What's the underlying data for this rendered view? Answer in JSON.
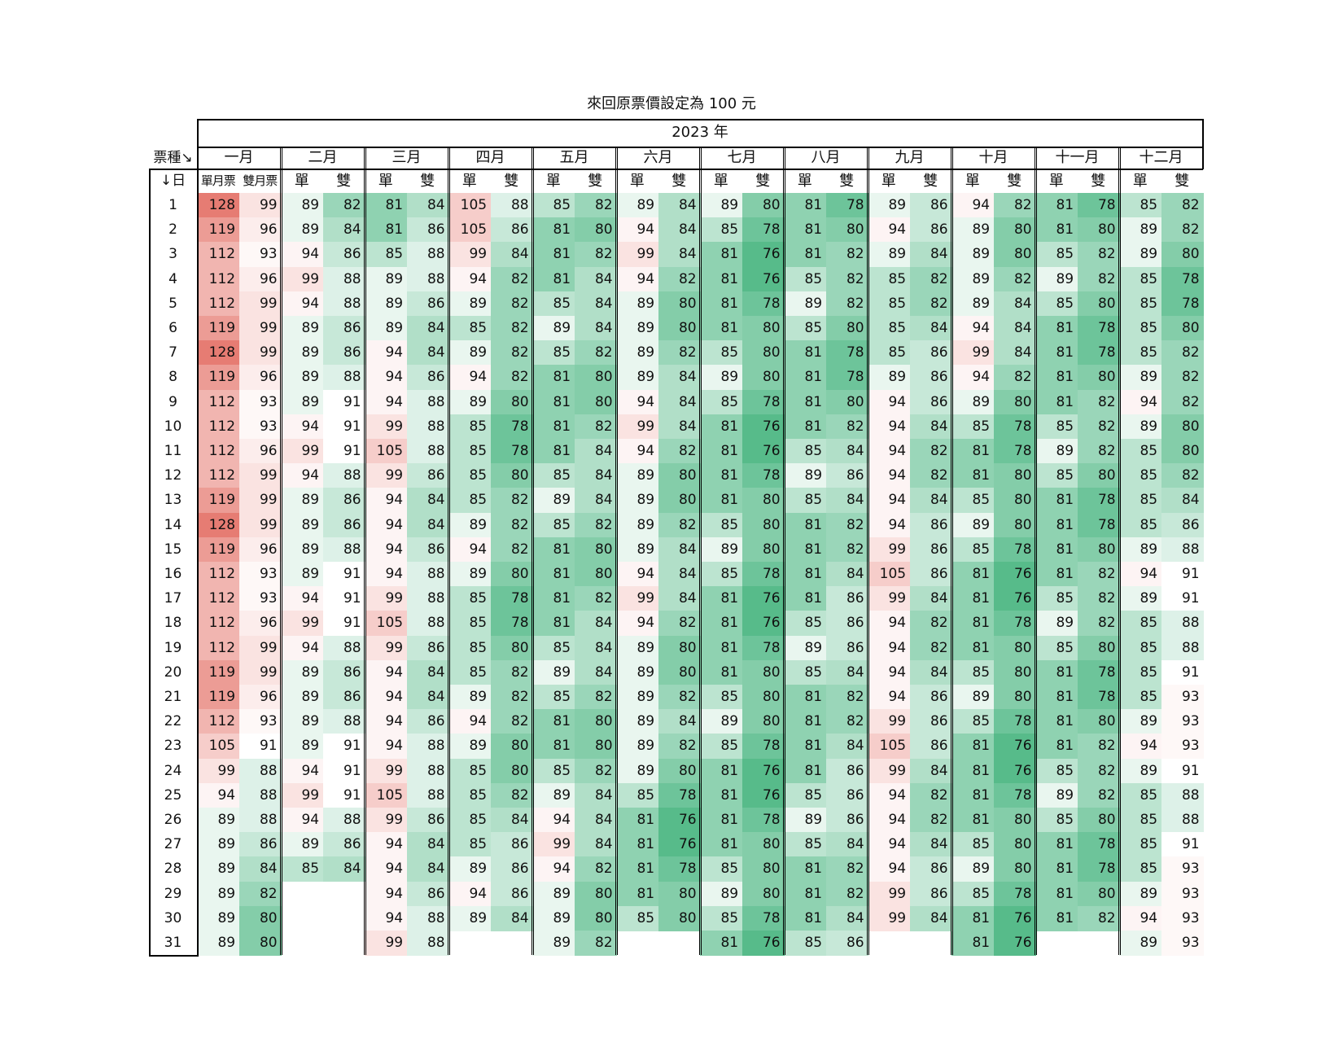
{
  "title": "來回原票價設定為 100 元",
  "year_label": "2023 年",
  "corner_top": "票種↘",
  "corner_bottom": "↓日",
  "col_single": "單",
  "col_double": "雙",
  "col_single_jan": "單月票",
  "col_double_jan": "雙月票",
  "months": [
    "一月",
    "二月",
    "三月",
    "四月",
    "五月",
    "六月",
    "七月",
    "八月",
    "九月",
    "十月",
    "十一月",
    "十二月"
  ],
  "colors": {
    "high": "#e67c73",
    "mid": "#ffffff",
    "low": "#57bb8a"
  },
  "days": [
    1,
    2,
    3,
    4,
    5,
    6,
    7,
    8,
    9,
    10,
    11,
    12,
    13,
    14,
    15,
    16,
    17,
    18,
    19,
    20,
    21,
    22,
    23,
    24,
    25,
    26,
    27,
    28,
    29,
    30,
    31
  ],
  "single": [
    [
      128,
      119,
      112,
      112,
      112,
      119,
      128,
      119,
      112,
      112,
      112,
      112,
      119,
      128,
      119,
      112,
      112,
      112,
      112,
      119,
      119,
      112,
      105,
      99,
      94,
      89,
      89,
      89,
      89,
      89,
      89
    ],
    [
      89,
      89,
      94,
      99,
      94,
      89,
      89,
      89,
      89,
      94,
      99,
      94,
      89,
      89,
      89,
      89,
      94,
      99,
      94,
      89,
      89,
      89,
      89,
      94,
      99,
      94,
      89,
      85
    ],
    [
      81,
      81,
      85,
      89,
      89,
      89,
      94,
      94,
      94,
      99,
      105,
      99,
      94,
      94,
      94,
      94,
      99,
      105,
      99,
      94,
      94,
      94,
      94,
      99,
      105,
      99,
      94,
      94,
      94,
      94,
      99
    ],
    [
      105,
      105,
      99,
      94,
      89,
      85,
      89,
      94,
      89,
      85,
      85,
      85,
      85,
      89,
      94,
      89,
      85,
      85,
      85,
      85,
      89,
      94,
      89,
      85,
      85,
      85,
      85,
      89,
      94,
      89
    ],
    [
      85,
      81,
      81,
      81,
      85,
      89,
      85,
      81,
      81,
      81,
      81,
      85,
      89,
      85,
      81,
      81,
      81,
      81,
      85,
      89,
      85,
      81,
      81,
      85,
      89,
      94,
      99,
      94,
      89,
      89,
      89
    ],
    [
      89,
      94,
      99,
      94,
      89,
      89,
      89,
      89,
      94,
      99,
      94,
      89,
      89,
      89,
      89,
      94,
      99,
      94,
      89,
      89,
      89,
      89,
      89,
      89,
      85,
      81,
      81,
      81,
      81,
      85
    ],
    [
      89,
      85,
      81,
      81,
      81,
      81,
      85,
      89,
      85,
      81,
      81,
      81,
      81,
      85,
      89,
      85,
      81,
      81,
      81,
      81,
      85,
      89,
      85,
      81,
      81,
      81,
      81,
      85,
      89,
      85,
      81
    ],
    [
      81,
      81,
      81,
      85,
      89,
      85,
      81,
      81,
      81,
      81,
      85,
      89,
      85,
      81,
      81,
      81,
      81,
      85,
      89,
      85,
      81,
      81,
      81,
      81,
      85,
      89,
      85,
      81,
      81,
      81,
      85
    ],
    [
      89,
      94,
      89,
      85,
      85,
      85,
      85,
      89,
      94,
      94,
      94,
      94,
      94,
      94,
      99,
      105,
      99,
      94,
      94,
      94,
      94,
      99,
      105,
      99,
      94,
      94,
      94,
      94,
      99,
      99
    ],
    [
      94,
      89,
      89,
      89,
      89,
      94,
      99,
      94,
      89,
      85,
      81,
      81,
      85,
      89,
      85,
      81,
      81,
      81,
      81,
      85,
      89,
      85,
      81,
      81,
      81,
      81,
      85,
      89,
      85,
      81,
      81
    ],
    [
      81,
      81,
      85,
      89,
      85,
      81,
      81,
      81,
      81,
      85,
      89,
      85,
      81,
      81,
      81,
      81,
      85,
      89,
      85,
      81,
      81,
      81,
      81,
      85,
      89,
      85,
      81,
      81,
      81,
      81
    ],
    [
      85,
      89,
      89,
      85,
      85,
      85,
      85,
      89,
      94,
      89,
      85,
      85,
      85,
      85,
      89,
      94,
      89,
      85,
      85,
      85,
      85,
      89,
      94,
      89,
      85,
      85,
      85,
      85,
      89,
      94,
      89
    ]
  ],
  "double": [
    [
      99,
      96,
      93,
      96,
      99,
      99,
      99,
      96,
      93,
      93,
      96,
      99,
      99,
      99,
      96,
      93,
      93,
      96,
      99,
      99,
      96,
      93,
      91,
      88,
      88,
      88,
      86,
      84,
      82,
      80,
      80
    ],
    [
      82,
      84,
      86,
      88,
      88,
      86,
      86,
      88,
      91,
      91,
      91,
      88,
      86,
      86,
      88,
      91,
      91,
      91,
      88,
      86,
      86,
      88,
      91,
      91,
      91,
      88,
      86,
      84
    ],
    [
      84,
      86,
      88,
      88,
      86,
      84,
      84,
      86,
      88,
      88,
      88,
      86,
      84,
      84,
      86,
      88,
      88,
      88,
      86,
      84,
      84,
      86,
      88,
      88,
      88,
      86,
      84,
      84,
      86,
      88,
      88
    ],
    [
      88,
      86,
      84,
      82,
      82,
      82,
      82,
      82,
      80,
      78,
      78,
      80,
      82,
      82,
      82,
      80,
      78,
      78,
      80,
      82,
      82,
      82,
      80,
      80,
      82,
      84,
      86,
      86,
      86,
      84
    ],
    [
      82,
      80,
      82,
      84,
      84,
      84,
      82,
      80,
      80,
      82,
      84,
      84,
      84,
      82,
      80,
      80,
      82,
      84,
      84,
      84,
      82,
      80,
      80,
      82,
      84,
      84,
      84,
      82,
      80,
      80,
      82
    ],
    [
      84,
      84,
      84,
      82,
      80,
      80,
      82,
      84,
      84,
      84,
      82,
      80,
      80,
      82,
      84,
      84,
      84,
      82,
      80,
      80,
      82,
      84,
      82,
      80,
      78,
      76,
      76,
      78,
      80,
      80
    ],
    [
      80,
      78,
      76,
      76,
      78,
      80,
      80,
      80,
      78,
      76,
      76,
      78,
      80,
      80,
      80,
      78,
      76,
      76,
      78,
      80,
      80,
      80,
      78,
      76,
      76,
      78,
      80,
      80,
      80,
      78,
      76
    ],
    [
      78,
      80,
      82,
      82,
      82,
      80,
      78,
      78,
      80,
      82,
      84,
      86,
      84,
      82,
      82,
      84,
      86,
      86,
      86,
      84,
      82,
      82,
      84,
      86,
      86,
      86,
      84,
      82,
      82,
      84,
      86
    ],
    [
      86,
      86,
      84,
      82,
      82,
      84,
      86,
      86,
      86,
      84,
      82,
      82,
      84,
      86,
      86,
      86,
      84,
      82,
      82,
      84,
      86,
      86,
      86,
      84,
      82,
      82,
      84,
      86,
      86,
      84
    ],
    [
      82,
      80,
      80,
      82,
      84,
      84,
      84,
      82,
      80,
      78,
      78,
      80,
      80,
      80,
      78,
      76,
      76,
      78,
      80,
      80,
      80,
      78,
      76,
      76,
      78,
      80,
      80,
      80,
      78,
      76,
      76
    ],
    [
      78,
      80,
      82,
      82,
      80,
      78,
      78,
      80,
      82,
      82,
      82,
      80,
      78,
      78,
      80,
      82,
      82,
      82,
      80,
      78,
      78,
      80,
      82,
      82,
      82,
      80,
      78,
      78,
      80,
      82
    ],
    [
      82,
      82,
      80,
      78,
      78,
      80,
      82,
      82,
      82,
      80,
      80,
      82,
      84,
      86,
      88,
      91,
      91,
      88,
      88,
      91,
      93,
      93,
      93,
      91,
      88,
      88,
      91,
      93,
      93,
      93,
      93
    ]
  ]
}
